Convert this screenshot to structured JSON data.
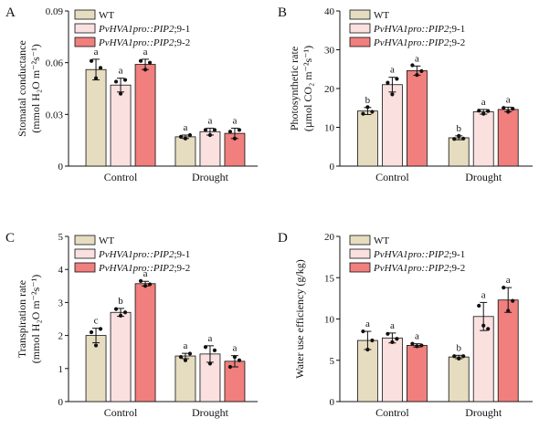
{
  "colors": {
    "WT": "#e6dcc0",
    "line1": "#fbe0e0",
    "line2": "#f07f7d",
    "axis": "#111111"
  },
  "legend": [
    {
      "key": "WT",
      "prefix": "WT",
      "suffix": ""
    },
    {
      "key": "line1",
      "prefix": "PvHVA1pro::PIP2",
      "suffix": ";9-1"
    },
    {
      "key": "line2",
      "prefix": "PvHVA1pro::PIP2",
      "suffix": ";9-2"
    }
  ],
  "chart_data": [
    {
      "panel": "A",
      "type": "bar",
      "categories": [
        "Control",
        "Drought"
      ],
      "ylabel_line1": "Stomatal conductance",
      "ylabel_line2": "(mmol H₂O m⁻²s⁻¹)",
      "ylim": [
        0,
        0.09
      ],
      "yticks": [
        "0",
        "0.03",
        "0.06",
        "0.09"
      ],
      "series": [
        {
          "key": "WT",
          "values": [
            0.056,
            0.017
          ],
          "errors": [
            0.006,
            0.001
          ],
          "letters": [
            "a",
            "a"
          ],
          "points": [
            [
              0.061,
              0.051,
              0.057
            ],
            [
              0.017,
              0.016,
              0.018
            ]
          ]
        },
        {
          "key": "line1",
          "values": [
            0.047,
            0.02
          ],
          "errors": [
            0.004,
            0.002
          ],
          "letters": [
            "a",
            "a"
          ],
          "points": [
            [
              0.049,
              0.042,
              0.05
            ],
            [
              0.021,
              0.018,
              0.021
            ]
          ]
        },
        {
          "key": "line2",
          "values": [
            0.059,
            0.019
          ],
          "errors": [
            0.003,
            0.003
          ],
          "letters": [
            "a",
            "a"
          ],
          "points": [
            [
              0.061,
              0.056,
              0.06
            ],
            [
              0.02,
              0.016,
              0.021
            ]
          ]
        }
      ]
    },
    {
      "panel": "B",
      "type": "bar",
      "categories": [
        "Control",
        "Drought"
      ],
      "ylabel_line1": "Photosynthetic rate",
      "ylabel_line2": "(µmol CO₂ m⁻²s⁻¹)",
      "ylim": [
        0,
        40
      ],
      "yticks": [
        "0",
        "10",
        "20",
        "30",
        "40"
      ],
      "series": [
        {
          "key": "WT",
          "values": [
            14.2,
            7.3
          ],
          "errors": [
            0.9,
            0.5
          ],
          "letters": [
            "b",
            "b"
          ],
          "points": [
            [
              13.5,
              15.2,
              14.0
            ],
            [
              7.0,
              7.8,
              7.1
            ]
          ]
        },
        {
          "key": "line1",
          "values": [
            21.0,
            14.0
          ],
          "errors": [
            1.9,
            0.6
          ],
          "letters": [
            "a",
            "a"
          ],
          "points": [
            [
              21.5,
              18.5,
              22.5
            ],
            [
              14.3,
              13.5,
              14.2
            ]
          ]
        },
        {
          "key": "line2",
          "values": [
            24.6,
            14.6
          ],
          "errors": [
            1.2,
            0.6
          ],
          "letters": [
            "a",
            "a"
          ],
          "points": [
            [
              26.0,
              23.5,
              24.5
            ],
            [
              15.0,
              14.0,
              14.8
            ]
          ]
        }
      ]
    },
    {
      "panel": "C",
      "type": "bar",
      "categories": [
        "Control",
        "Drought"
      ],
      "ylabel_line1": "Transpiration rate",
      "ylabel_line2": "(mmol H₂O m⁻²s⁻¹)",
      "ylim": [
        0,
        5
      ],
      "yticks": [
        "0",
        "1",
        "2",
        "3",
        "4",
        "5"
      ],
      "series": [
        {
          "key": "WT",
          "values": [
            2.0,
            1.38
          ],
          "errors": [
            0.22,
            0.08
          ],
          "letters": [
            "c",
            "a"
          ],
          "points": [
            [
              2.1,
              1.7,
              2.2
            ],
            [
              1.35,
              1.25,
              1.45
            ]
          ]
        },
        {
          "key": "line1",
          "values": [
            2.7,
            1.44
          ],
          "errors": [
            0.12,
            0.25
          ],
          "letters": [
            "b",
            "a"
          ],
          "points": [
            [
              2.8,
              2.6,
              2.7
            ],
            [
              1.65,
              1.15,
              1.55
            ]
          ]
        },
        {
          "key": "line2",
          "values": [
            3.57,
            1.22
          ],
          "errors": [
            0.07,
            0.17
          ],
          "letters": [
            "a",
            "a"
          ],
          "points": [
            [
              3.65,
              3.5,
              3.55
            ],
            [
              1.05,
              1.35,
              1.25
            ]
          ]
        }
      ]
    },
    {
      "panel": "D",
      "type": "bar",
      "categories": [
        "Control",
        "Drought"
      ],
      "ylabel_line1": "Water use efficiency (g/kg)",
      "ylabel_line2": "",
      "ylim": [
        0,
        20
      ],
      "yticks": [
        "0",
        "5",
        "10",
        "15",
        "20"
      ],
      "series": [
        {
          "key": "WT",
          "values": [
            7.4,
            5.4
          ],
          "errors": [
            1.1,
            0.2
          ],
          "letters": [
            "a",
            "b"
          ],
          "points": [
            [
              8.5,
              6.3,
              7.4
            ],
            [
              5.5,
              5.2,
              5.5
            ]
          ]
        },
        {
          "key": "line1",
          "values": [
            7.7,
            10.3
          ],
          "errors": [
            0.6,
            1.7
          ],
          "letters": [
            "a",
            "a"
          ],
          "points": [
            [
              8.2,
              7.2,
              7.6
            ],
            [
              11.6,
              9.2,
              8.8
            ]
          ]
        },
        {
          "key": "line2",
          "values": [
            6.8,
            12.3
          ],
          "errors": [
            0.2,
            1.5
          ],
          "letters": [
            "a",
            "a"
          ],
          "points": [
            [
              7.0,
              6.7,
              6.8
            ],
            [
              13.8,
              11.0,
              12.2
            ]
          ]
        }
      ]
    }
  ]
}
